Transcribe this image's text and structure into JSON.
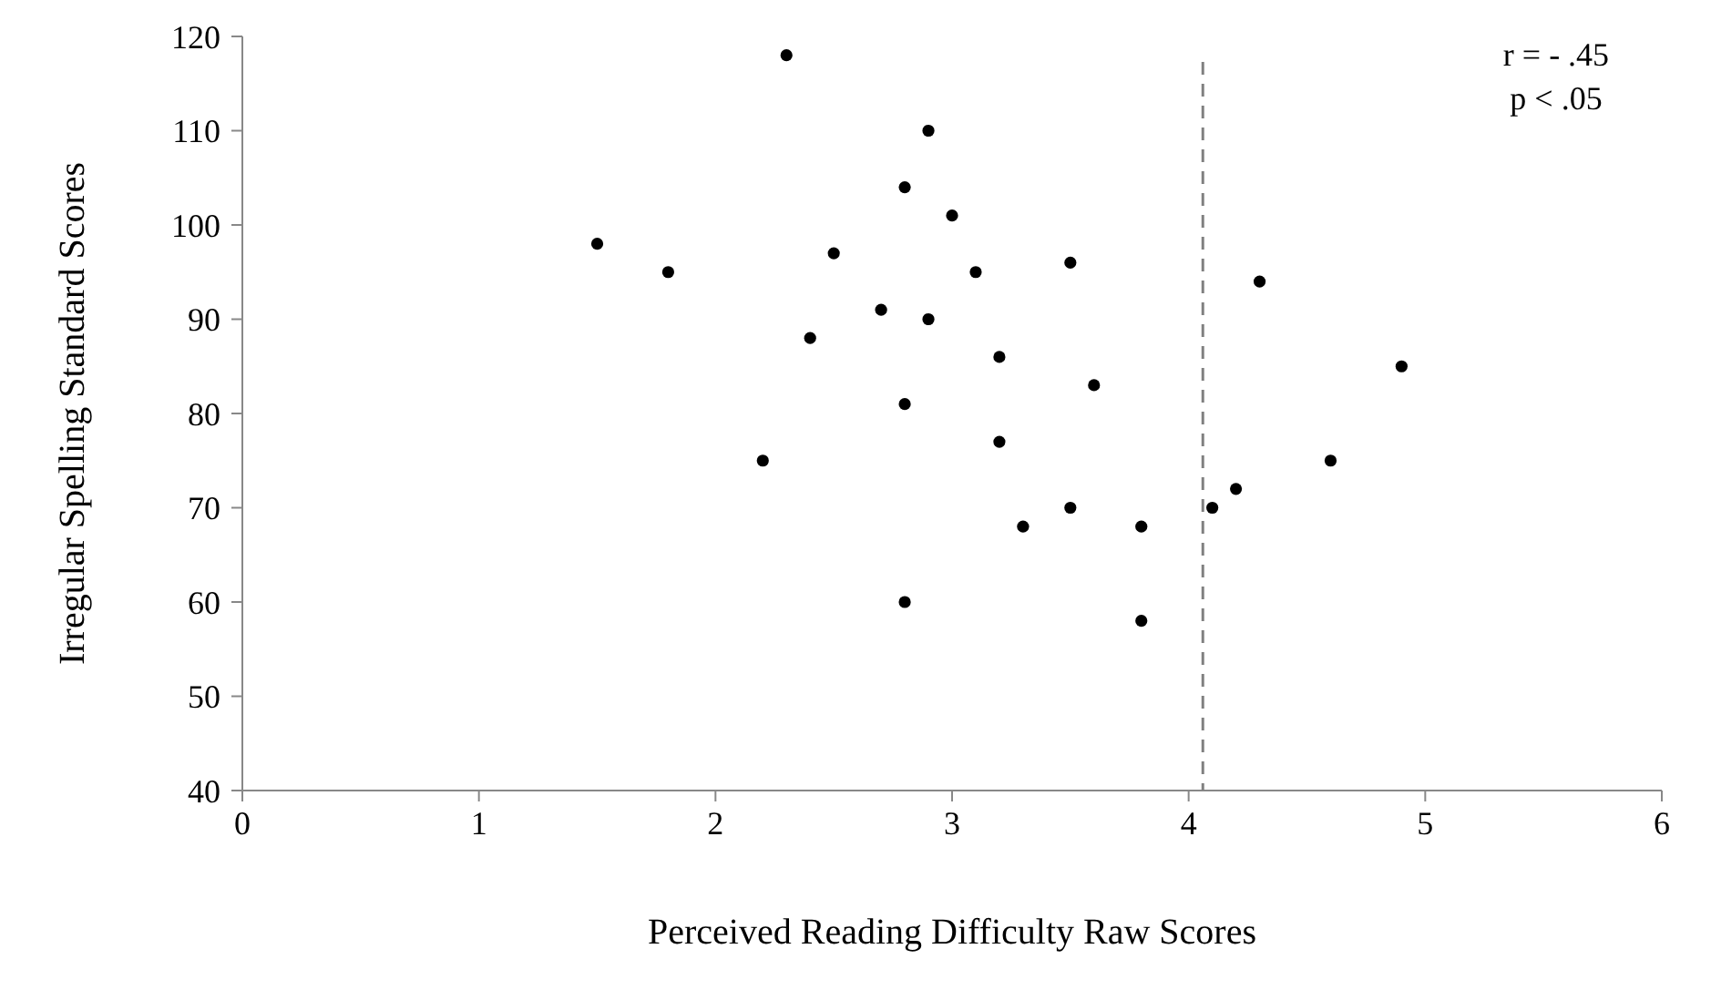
{
  "chart_data": {
    "type": "scatter",
    "xlabel": "Perceived Reading Difficulty Raw Scores",
    "ylabel": "Irregular Spelling Standard Scores",
    "x": [
      1.5,
      1.8,
      2.3,
      2.2,
      2.4,
      2.5,
      2.7,
      2.8,
      2.8,
      2.8,
      2.9,
      2.9,
      3.0,
      3.1,
      3.2,
      3.2,
      3.3,
      3.5,
      3.5,
      3.6,
      3.8,
      3.8,
      4.1,
      4.2,
      4.3,
      4.6,
      4.9
    ],
    "series": [
      {
        "color": "#000000",
        "values": [
          98,
          95,
          118,
          75,
          88,
          97,
          91,
          104,
          81,
          60,
          110,
          90,
          101,
          95,
          86,
          77,
          68,
          96,
          70,
          83,
          68,
          58,
          70,
          72,
          94,
          75,
          85
        ]
      }
    ],
    "xlim": [
      0,
      6
    ],
    "xticks": [
      0,
      1,
      2,
      3,
      4,
      5,
      6
    ],
    "ylim": [
      40,
      120
    ],
    "yticks": [
      40,
      50,
      60,
      70,
      80,
      90,
      100,
      110,
      120
    ],
    "ref_lines": [
      {
        "axis": "x",
        "value": 4.06,
        "color": "#808080",
        "line_style": "dashed"
      }
    ],
    "annotations": [
      "r = - .45",
      "p < .05"
    ],
    "marker": "circle",
    "grid": false
  }
}
